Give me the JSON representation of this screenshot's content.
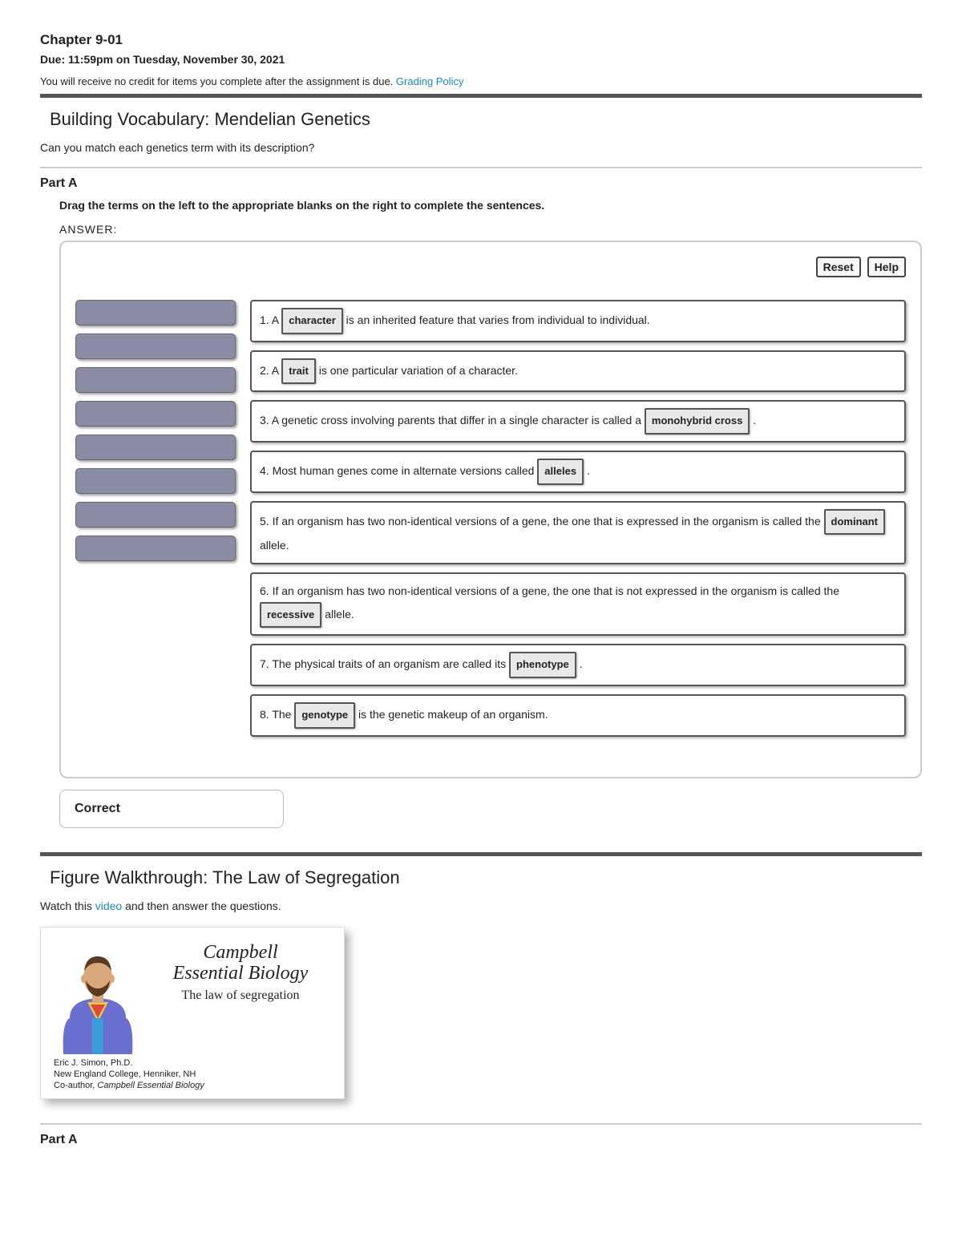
{
  "header": {
    "chapter": "Chapter 9-01",
    "due": "Due: 11:59pm on Tuesday, November 30, 2021",
    "credit_text": "You will receive no credit for items you complete after the assignment is due.",
    "grading_policy": "Grading Policy"
  },
  "section1": {
    "title": "Building Vocabulary: Mendelian Genetics",
    "prompt": "Can you match each genetics term with its description?",
    "part_label": "Part A",
    "instructions": "Drag the terms on the left to the appropriate blanks on the right to complete the sentences.",
    "answer_label": "ANSWER:",
    "reset_label": "Reset",
    "help_label": "Help",
    "source_slots": 8,
    "sentences": [
      {
        "pre": "1. A ",
        "term": "character",
        "post": " is an inherited feature that varies from individual to individual."
      },
      {
        "pre": "2. A ",
        "term": "trait",
        "post": " is one particular variation of a character."
      },
      {
        "pre": "3. A genetic cross involving parents that differ in a single character is called a ",
        "term": "monohybrid cross",
        "post": " ."
      },
      {
        "pre": "4. Most human genes come in alternate versions called ",
        "term": "alleles",
        "post": " ."
      },
      {
        "pre": "5. If an organism has two non-identical versions of a gene, the one that is expressed in the organism is called the ",
        "term": "dominant",
        "post": " allele."
      },
      {
        "pre": "6. If an organism has two non-identical versions of a gene, the one that is not expressed in the organism is called the ",
        "term": "recessive",
        "post": " allele."
      },
      {
        "pre": "7. The physical traits of an organism are called its ",
        "term": "phenotype",
        "post": " ."
      },
      {
        "pre": "8. The ",
        "term": "genotype",
        "post": " is the genetic makeup of an organism."
      }
    ],
    "feedback": "Correct"
  },
  "section2": {
    "title": "Figure Walkthrough: The Law of Segregation",
    "prompt_pre": "Watch this ",
    "prompt_link": "video",
    "prompt_post": " and then answer the questions.",
    "video": {
      "line1": "Campbell",
      "line2": "Essential Biology",
      "subtitle": "The law of segregation",
      "credit1": "Eric J. Simon, Ph.D.",
      "credit2": "New England College, Henniker, NH",
      "credit3_pre": "Co-author, ",
      "credit3_em": "Campbell Essential Biology"
    },
    "part_label": "Part A"
  },
  "colors": {
    "link": "#1a8ab5",
    "slot_bg": "#8a8ca5",
    "divider": "#555555",
    "avatar_shirt": "#6a6fd0",
    "avatar_skin": "#d9a87a",
    "avatar_hair": "#5a3a20"
  }
}
